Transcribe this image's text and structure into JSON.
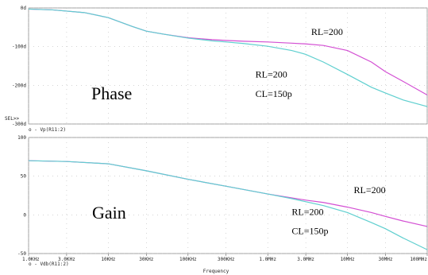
{
  "chart_data": [
    {
      "type": "line",
      "panel": "phase",
      "panel_label": "Phase",
      "y_ticks": [
        0,
        -100,
        -200,
        -300
      ],
      "y_tick_labels": [
        "0d",
        "-100d",
        "-200d",
        "-300d"
      ],
      "ylim": [
        -300,
        0
      ],
      "sel_marker": "SEL>>",
      "grid": true,
      "series": [
        {
          "name": "RL=200",
          "color": "#d34fd3",
          "x": [
            1000,
            2000,
            5000,
            10000,
            20000,
            30000,
            50000,
            100000,
            200000,
            300000,
            500000,
            1000000,
            2000000,
            3000000,
            5000000,
            10000000,
            20000000,
            30000000,
            50000000,
            100000000
          ],
          "y": [
            -3,
            -5,
            -12,
            -25,
            -48,
            -60,
            -68,
            -77,
            -82,
            -84,
            -86,
            -88,
            -91,
            -93,
            -97,
            -110,
            -140,
            -165,
            -190,
            -225
          ]
        },
        {
          "name": "RL=200 CL=150p",
          "trace_label": "o - Vp(R11:2)",
          "color": "#5fcfcf",
          "x": [
            1000,
            2000,
            5000,
            10000,
            20000,
            30000,
            50000,
            100000,
            200000,
            300000,
            500000,
            1000000,
            2000000,
            3000000,
            5000000,
            10000000,
            20000000,
            30000000,
            50000000,
            100000000
          ],
          "y": [
            -3,
            -5,
            -12,
            -25,
            -48,
            -60,
            -68,
            -78,
            -85,
            -88,
            -92,
            -99,
            -110,
            -120,
            -140,
            -172,
            -205,
            -220,
            -238,
            -255
          ]
        }
      ],
      "annotations": [
        {
          "text": "RL=200",
          "x": 3500000,
          "y": -70
        },
        {
          "text": "RL=200",
          "x": 700000,
          "y": -180
        },
        {
          "text": "CL=150p",
          "x": 700000,
          "y": -230
        }
      ]
    },
    {
      "type": "line",
      "panel": "gain",
      "panel_label": "Gain",
      "y_ticks": [
        100,
        50,
        0,
        -50
      ],
      "y_tick_labels": [
        "100",
        "50",
        "0",
        "-50"
      ],
      "ylim": [
        -50,
        100
      ],
      "xlabel": "Frequency",
      "x_scale": "log",
      "xlim": [
        1000,
        100000000
      ],
      "x_ticks": [
        1000,
        3000,
        10000,
        30000,
        100000,
        300000,
        1000000,
        3000000,
        10000000,
        30000000,
        100000000
      ],
      "x_tick_labels": [
        "1.0KHz",
        "3.0KHz",
        "10KHz",
        "30KHz",
        "100KHz",
        "300KHz",
        "1.0MHz",
        "3.0MHz",
        "10MHz",
        "30MHz",
        "100MHz"
      ],
      "grid": true,
      "series": [
        {
          "name": "RL=200",
          "color": "#d34fd3",
          "x": [
            1000,
            3000,
            10000,
            30000,
            100000,
            300000,
            1000000,
            2000000,
            3000000,
            5000000,
            10000000,
            20000000,
            30000000,
            50000000,
            100000000
          ],
          "y": [
            70,
            69,
            66,
            57,
            46,
            37,
            27,
            22,
            19,
            16,
            10,
            3,
            -2,
            -8,
            -15
          ]
        },
        {
          "name": "RL=200 CL=150p",
          "trace_label": "o - Vdb(R11:2)",
          "color": "#5fcfcf",
          "x": [
            1000,
            3000,
            10000,
            30000,
            100000,
            300000,
            1000000,
            2000000,
            3000000,
            5000000,
            10000000,
            20000000,
            30000000,
            50000000,
            100000000
          ],
          "y": [
            70,
            69,
            66,
            57,
            46,
            37,
            27,
            21,
            17,
            12,
            3,
            -10,
            -18,
            -30,
            -45
          ]
        }
      ],
      "annotations": [
        {
          "text": "RL=200",
          "x": 12000000,
          "y": 28
        },
        {
          "text": "RL=200",
          "x": 2000000,
          "y": 0
        },
        {
          "text": "CL=150p",
          "x": 2000000,
          "y": -25
        }
      ]
    }
  ]
}
